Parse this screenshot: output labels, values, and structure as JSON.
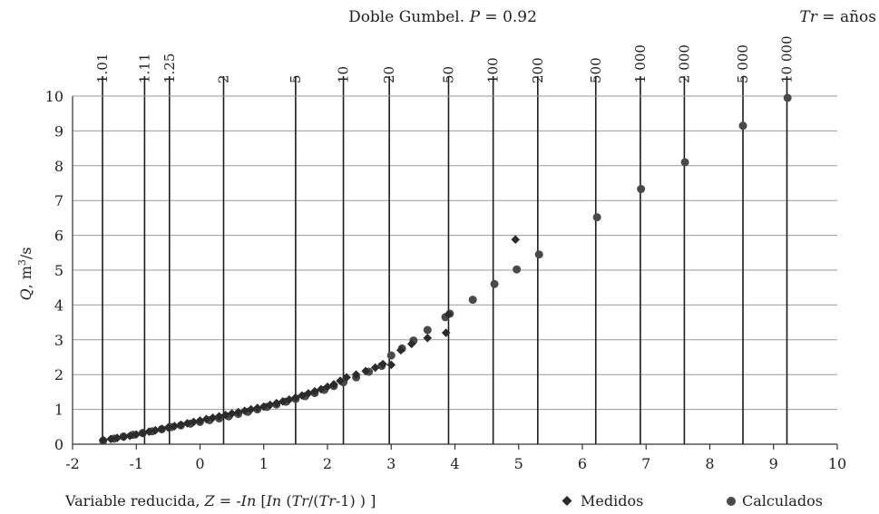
{
  "chart_data": {
    "type": "scatter",
    "title_prefix": "Doble Gumbel. ",
    "title_p": "P",
    "title_suffix": " = 0.92",
    "corner_tr": "Tr",
    "corner_rest": " = años",
    "ylabel_q": "Q",
    "ylabel_rest": ", m",
    "ylabel_sup": "3",
    "ylabel_unit": "/s",
    "xlabel_pre": "Variable reducida, ",
    "xlabel_z": "Z",
    "xlabel_mid": " = -",
    "xlabel_ln1": "In",
    "xlabel_br": " [",
    "xlabel_ln2": "In",
    "xlabel_paren": " (",
    "xlabel_tr1": "Tr",
    "xlabel_slash": "/(",
    "xlabel_tr2": "Tr",
    "xlabel_end": "-1) ) ]",
    "xlim": [
      -2,
      10
    ],
    "ylim": [
      0,
      10
    ],
    "x_ticks": [
      "-2",
      "-1",
      "0",
      "1",
      "2",
      "3",
      "4",
      "5",
      "6",
      "7",
      "8",
      "9",
      "10"
    ],
    "y_ticks": [
      "0",
      "1",
      "2",
      "3",
      "4",
      "5",
      "6",
      "7",
      "8",
      "9",
      "10"
    ],
    "return_periods": [
      {
        "label": "1.01",
        "z": -1.53
      },
      {
        "label": "1.11",
        "z": -0.87
      },
      {
        "label": "1.25",
        "z": -0.48
      },
      {
        "label": "2",
        "z": 0.37
      },
      {
        "label": "5",
        "z": 1.5
      },
      {
        "label": "10",
        "z": 2.25
      },
      {
        "label": "20",
        "z": 2.97
      },
      {
        "label": "50",
        "z": 3.9
      },
      {
        "label": "100",
        "z": 4.6
      },
      {
        "label": "200",
        "z": 5.3
      },
      {
        "label": "500",
        "z": 6.21
      },
      {
        "label": "1 000",
        "z": 6.91
      },
      {
        "label": "2 000",
        "z": 7.6
      },
      {
        "label": "5 000",
        "z": 8.52
      },
      {
        "label": "10 000",
        "z": 9.21
      }
    ],
    "legend_position": "bottom-right",
    "series": [
      {
        "name": "Medidos",
        "marker": "diamond",
        "color": "#2b2b2b",
        "points": [
          [
            -1.52,
            0.12
          ],
          [
            -1.4,
            0.15
          ],
          [
            -1.3,
            0.18
          ],
          [
            -1.2,
            0.21
          ],
          [
            -1.1,
            0.24
          ],
          [
            -1.0,
            0.28
          ],
          [
            -0.9,
            0.32
          ],
          [
            -0.8,
            0.36
          ],
          [
            -0.7,
            0.4
          ],
          [
            -0.6,
            0.44
          ],
          [
            -0.5,
            0.48
          ],
          [
            -0.4,
            0.52
          ],
          [
            -0.3,
            0.56
          ],
          [
            -0.2,
            0.6
          ],
          [
            -0.1,
            0.64
          ],
          [
            0.0,
            0.68
          ],
          [
            0.1,
            0.72
          ],
          [
            0.2,
            0.76
          ],
          [
            0.3,
            0.8
          ],
          [
            0.4,
            0.84
          ],
          [
            0.5,
            0.88
          ],
          [
            0.6,
            0.92
          ],
          [
            0.7,
            0.96
          ],
          [
            0.8,
            1.0
          ],
          [
            0.9,
            1.04
          ],
          [
            1.0,
            1.08
          ],
          [
            1.1,
            1.13
          ],
          [
            1.2,
            1.18
          ],
          [
            1.3,
            1.23
          ],
          [
            1.4,
            1.28
          ],
          [
            1.5,
            1.34
          ],
          [
            1.6,
            1.4
          ],
          [
            1.7,
            1.46
          ],
          [
            1.8,
            1.52
          ],
          [
            1.9,
            1.58
          ],
          [
            2.0,
            1.65
          ],
          [
            2.1,
            1.72
          ],
          [
            2.2,
            1.82
          ],
          [
            2.3,
            1.92
          ],
          [
            2.45,
            2.0
          ],
          [
            2.6,
            2.1
          ],
          [
            2.75,
            2.2
          ],
          [
            2.87,
            2.3
          ],
          [
            3.0,
            2.28
          ],
          [
            3.15,
            2.7
          ],
          [
            3.32,
            2.88
          ],
          [
            3.57,
            3.05
          ],
          [
            3.86,
            3.2
          ],
          [
            3.9,
            3.73
          ],
          [
            4.95,
            5.88
          ]
        ]
      },
      {
        "name": "Calculados",
        "marker": "circle",
        "color": "#4a4a4a",
        "points": [
          [
            -1.52,
            0.1
          ],
          [
            -1.35,
            0.16
          ],
          [
            -1.2,
            0.22
          ],
          [
            -1.05,
            0.27
          ],
          [
            -0.9,
            0.32
          ],
          [
            -0.75,
            0.37
          ],
          [
            -0.6,
            0.43
          ],
          [
            -0.45,
            0.49
          ],
          [
            -0.3,
            0.54
          ],
          [
            -0.15,
            0.59
          ],
          [
            0.0,
            0.64
          ],
          [
            0.15,
            0.69
          ],
          [
            0.3,
            0.74
          ],
          [
            0.45,
            0.8
          ],
          [
            0.6,
            0.87
          ],
          [
            0.75,
            0.93
          ],
          [
            0.9,
            1.0
          ],
          [
            1.05,
            1.07
          ],
          [
            1.2,
            1.14
          ],
          [
            1.35,
            1.22
          ],
          [
            1.5,
            1.3
          ],
          [
            1.65,
            1.38
          ],
          [
            1.8,
            1.47
          ],
          [
            1.95,
            1.56
          ],
          [
            2.1,
            1.67
          ],
          [
            2.25,
            1.78
          ],
          [
            2.45,
            1.92
          ],
          [
            2.65,
            2.08
          ],
          [
            2.85,
            2.25
          ],
          [
            3.0,
            2.55
          ],
          [
            3.17,
            2.75
          ],
          [
            3.35,
            2.98
          ],
          [
            3.57,
            3.28
          ],
          [
            3.85,
            3.65
          ],
          [
            3.92,
            3.75
          ],
          [
            4.28,
            4.15
          ],
          [
            4.62,
            4.6
          ],
          [
            4.97,
            5.02
          ],
          [
            5.32,
            5.45
          ],
          [
            6.23,
            6.52
          ],
          [
            6.92,
            7.33
          ],
          [
            7.61,
            8.1
          ],
          [
            8.52,
            9.15
          ],
          [
            9.22,
            9.95
          ]
        ]
      }
    ]
  }
}
